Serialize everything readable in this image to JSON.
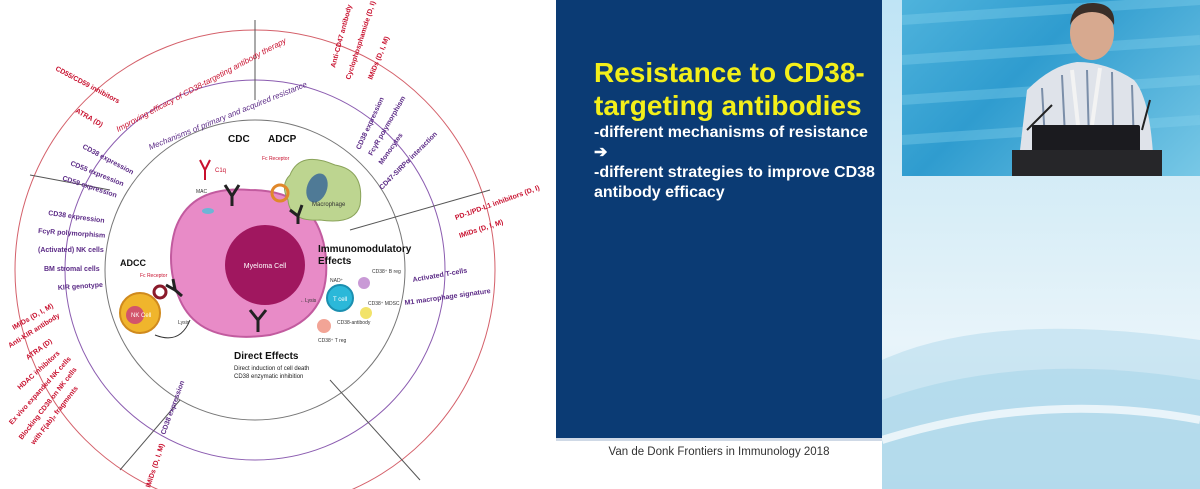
{
  "figure": {
    "center_cell": "Myeloma Cell",
    "quadrant_labels": {
      "cdc": "CDC",
      "adcp": "ADCP",
      "adcc": "ADCC",
      "immunomodulatory": "Immunomodulatory",
      "immunomodulatory_2": "Effects",
      "direct_effects": "Direct Effects",
      "direct_line1": "Direct induction of cell death",
      "direct_line2": "CD38 enzymatic inhibition"
    },
    "small_labels": {
      "c1q": "C1q",
      "mac": "MAC",
      "fc_receptor_top": "Fc Receptor",
      "macrophage": "Macrophage",
      "fc_receptor_left": "Fc Receptor",
      "nk_cell": "NK Cell",
      "lysis_left": "Lysis",
      "nad": "NAD⁺",
      "t_cell": "T cell",
      "lysis_right": "←Lysis",
      "breg": "CD38⁺ B reg",
      "mdsc": "CD38⁺ MDSC",
      "treg": "CD38⁺ T reg",
      "cd38_antibody": "CD38-antibody"
    },
    "ring_outer": "Improving efficacy of CD38-targeting antibody therapy",
    "ring_inner": "Mechanisms of primary and acquired resistance",
    "red_labels": [
      "CD55/CD59 inhibitors",
      "ATRA (D)",
      "Anti-CD47 antibody",
      "Cyclophosphamide (D, I)",
      "IMiDs (D, I, M)",
      "PD-1/PD-L1 inhibitors (D, I)",
      "IMiDs (D, I, M)",
      "IMiDs (D, I, M)",
      "Anti-KIR antibody",
      "ATRA (D)",
      "HDAC inhibitors",
      "Ex vivo expanded NK cells",
      "Blocking CD38 on NK cells",
      "with F(ab)₂ fragments",
      "IMiDs (D, I, M)"
    ],
    "purple_labels": [
      "CD38 expression",
      "CD55 expression",
      "CD59 expression",
      "CD38 expression",
      "FcγR polymorphism",
      "Monocytes",
      "CD47-SIRPα interaction",
      "CD38 expression",
      "FcγR polymorphism",
      "(Activated) NK cells",
      "BM stromal cells",
      "KIR genotype",
      "Activated T-cells",
      "M1 macrophage signature",
      "CD38 expression"
    ]
  },
  "slide": {
    "title": "Resistance to CD38-targeting antibodies",
    "bullets": [
      "-different mechanisms of resistance ➔",
      "-different strategies to improve CD38 antibody efficacy"
    ],
    "citation": "Van de Donk Frontiers in Immunology 2018"
  },
  "colors": {
    "slide_blue": "#0b3b74",
    "title_yellow": "#f3ef1a",
    "red_label": "#c8102e",
    "purple_label": "#5b2a86",
    "myeloma_pink": "#e88bc7"
  }
}
